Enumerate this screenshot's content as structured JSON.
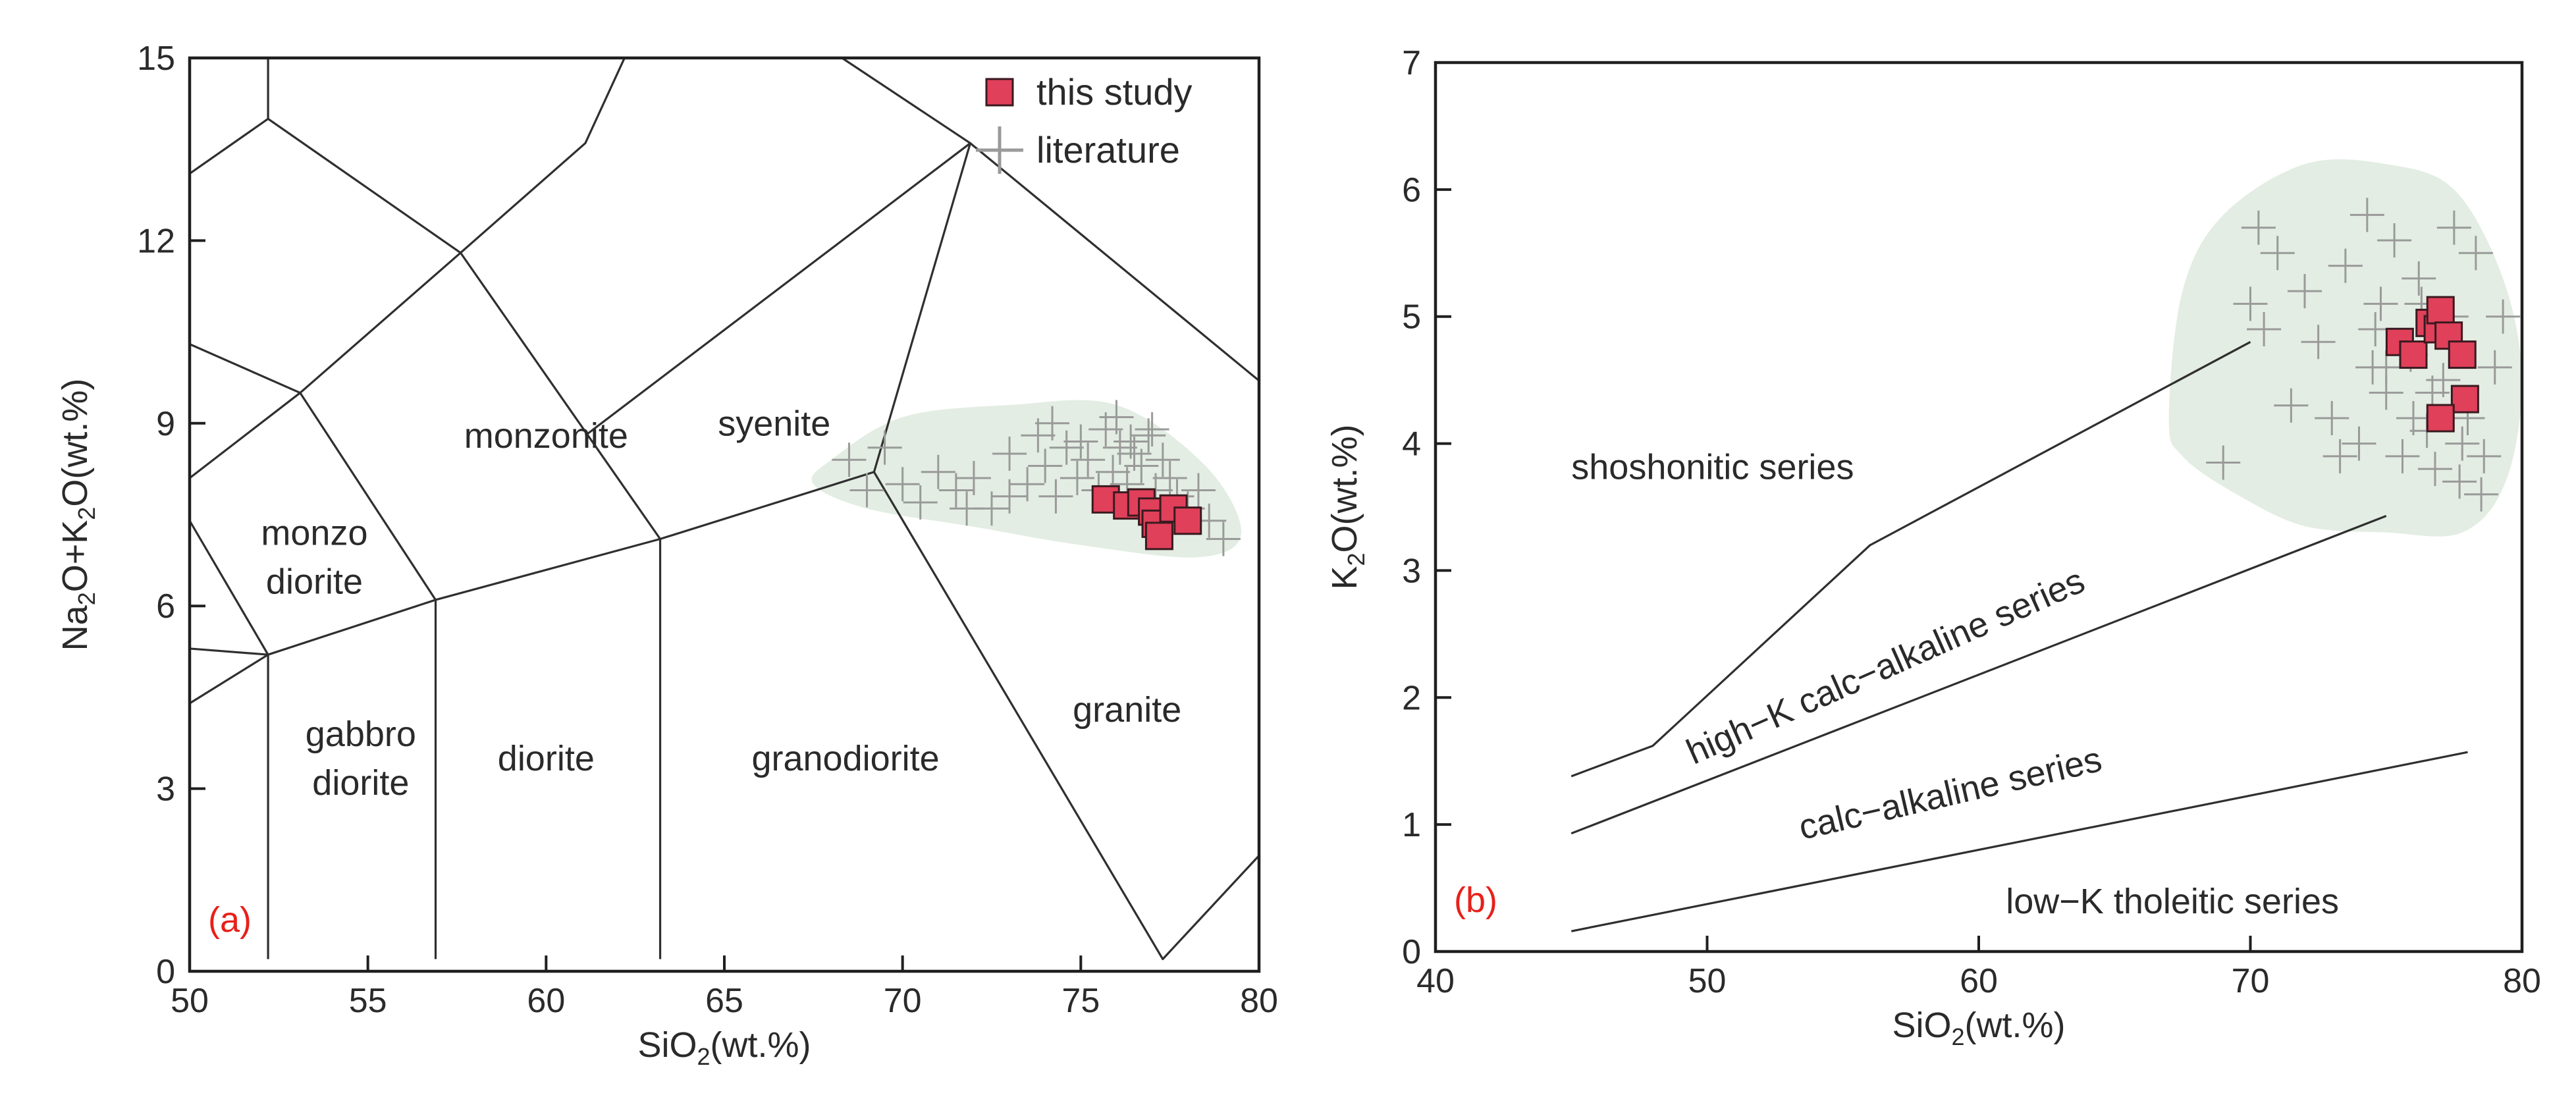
{
  "chart_data": [
    {
      "type": "scatter",
      "title": "",
      "panel_label": "(a)",
      "xlabel": "SiO",
      "xlabel_sub": "2",
      "xlabel_tail": "(wt.%)",
      "ylabel_parts": [
        "Na",
        "2",
        "O+K",
        "2",
        "O(wt.%)"
      ],
      "xlim": [
        50,
        80
      ],
      "ylim": [
        0,
        15
      ],
      "xticks": [
        50,
        55,
        60,
        65,
        70,
        75,
        80
      ],
      "yticks": [
        0,
        3,
        6,
        9,
        12,
        15
      ],
      "legend": {
        "position": "top-right",
        "entries": [
          {
            "label": "this study",
            "marker": "square",
            "color": "#e0405a"
          },
          {
            "label": "literature",
            "marker": "plus",
            "color": "#9a9a9a"
          }
        ]
      },
      "field_labels": [
        {
          "text": "monzonite",
          "x": 60.0,
          "y": 8.6
        },
        {
          "text": "syenite",
          "x": 66.4,
          "y": 8.8
        },
        {
          "text": "monzo",
          "x": 53.5,
          "y": 7.0
        },
        {
          "text": "diorite",
          "x": 53.5,
          "y": 6.2
        },
        {
          "text": "gabbro",
          "x": 54.8,
          "y": 3.7
        },
        {
          "text": "diorite",
          "x": 54.8,
          "y": 2.9
        },
        {
          "text": "diorite",
          "x": 60.0,
          "y": 3.3
        },
        {
          "text": "granodiorite",
          "x": 68.4,
          "y": 3.3
        },
        {
          "text": "granite",
          "x": 76.3,
          "y": 4.1
        }
      ],
      "boundaries": [
        [
          [
            50,
            4.4
          ],
          [
            52.2,
            5.2
          ],
          [
            56.9,
            6.1
          ],
          [
            63.2,
            7.1
          ],
          [
            69.2,
            8.2
          ],
          [
            71.9,
            13.6
          ],
          [
            80,
            9.7
          ]
        ],
        [
          [
            50,
            13.1
          ],
          [
            52.2,
            14.0
          ],
          [
            52.2,
            15.0
          ]
        ],
        [
          [
            52.2,
            14.0
          ],
          [
            57.6,
            11.8
          ],
          [
            61.1,
            13.6
          ],
          [
            62.2,
            15.0
          ]
        ],
        [
          [
            50,
            8.1
          ],
          [
            53.1,
            9.5
          ],
          [
            57.6,
            11.8
          ]
        ],
        [
          [
            50,
            10.3
          ],
          [
            53.1,
            9.5
          ],
          [
            56.9,
            6.1
          ]
        ],
        [
          [
            61.1,
            8.8
          ],
          [
            71.9,
            13.6
          ]
        ],
        [
          [
            57.6,
            11.8
          ],
          [
            63.2,
            7.1
          ]
        ],
        [
          [
            50,
            7.4
          ],
          [
            52.2,
            5.2
          ],
          [
            52.2,
            0.2
          ]
        ],
        [
          [
            50,
            5.3
          ],
          [
            52.2,
            5.2
          ]
        ],
        [
          [
            56.9,
            6.1
          ],
          [
            56.9,
            0.2
          ]
        ],
        [
          [
            63.2,
            7.1
          ],
          [
            63.2,
            0.2
          ]
        ],
        [
          [
            69.2,
            8.2
          ],
          [
            77.3,
            0.2
          ],
          [
            80,
            1.9
          ]
        ],
        [
          [
            68.3,
            15.0
          ],
          [
            71.9,
            13.6
          ]
        ]
      ],
      "shaded_region": {
        "color": "#e3ede3",
        "outline": [
          [
            68,
            8.4
          ],
          [
            70,
            9.1
          ],
          [
            73,
            9.3
          ],
          [
            76,
            9.3
          ],
          [
            78.5,
            8.3
          ],
          [
            79.5,
            7.2
          ],
          [
            78.3,
            6.8
          ],
          [
            75,
            7.0
          ],
          [
            72,
            7.3
          ],
          [
            69,
            7.6
          ],
          [
            67.5,
            8.0
          ]
        ]
      },
      "series": [
        {
          "name": "this study",
          "marker": "square",
          "color": "#e0405a",
          "x": [
            75.7,
            76.3,
            76.7,
            77.0,
            77.1,
            77.2,
            77.6,
            78.0
          ],
          "y": [
            7.75,
            7.65,
            7.7,
            7.55,
            7.35,
            7.15,
            7.6,
            7.4
          ]
        },
        {
          "name": "literature",
          "marker": "plus",
          "color": "#9a9a9a",
          "x": [
            68.5,
            69.0,
            69.5,
            70.0,
            70.5,
            71.0,
            71.5,
            72.0,
            72.5,
            73.0,
            73.5,
            73.8,
            74.0,
            74.3,
            74.6,
            74.9,
            75.2,
            75.5,
            75.7,
            75.9,
            76.1,
            76.3,
            76.5,
            76.7,
            76.9,
            77.1,
            77.3,
            77.5,
            77.7,
            78.0,
            78.3,
            78.6,
            79.0,
            74.2,
            75.0,
            76.0,
            77.0,
            73.0,
            71.8,
            76.4
          ],
          "y": [
            8.4,
            7.9,
            8.6,
            8.0,
            7.7,
            8.2,
            7.9,
            8.1,
            7.6,
            8.5,
            8.0,
            8.8,
            8.3,
            7.8,
            8.6,
            8.1,
            8.4,
            7.9,
            8.9,
            8.2,
            8.6,
            8.0,
            8.5,
            8.3,
            8.8,
            7.9,
            8.4,
            8.1,
            7.8,
            7.6,
            7.9,
            7.4,
            7.1,
            9.0,
            8.7,
            9.1,
            8.9,
            7.8,
            7.6,
            8.7
          ]
        }
      ]
    },
    {
      "type": "scatter",
      "title": "",
      "panel_label": "(b)",
      "xlabel": "SiO",
      "xlabel_sub": "2",
      "xlabel_tail": "(wt.%)",
      "ylabel_parts": [
        "K",
        "2",
        "O(wt.%)"
      ],
      "xlim": [
        40,
        80
      ],
      "ylim": [
        0,
        7
      ],
      "xticks": [
        40,
        50,
        60,
        70,
        80
      ],
      "yticks": [
        0,
        1,
        2,
        3,
        4,
        5,
        6,
        7
      ],
      "boundaries": [
        [
          [
            45,
            1.38
          ],
          [
            48,
            1.62
          ],
          [
            56,
            3.2
          ],
          [
            70,
            4.8
          ]
        ],
        [
          [
            45,
            0.93
          ],
          [
            75,
            3.43
          ]
        ],
        [
          [
            45,
            0.16
          ],
          [
            78,
            1.57
          ]
        ]
      ],
      "series_labels": [
        {
          "text": "shoshonitic  series",
          "x": 45,
          "y": 3.72,
          "angle": 0
        },
        {
          "text": "high−K  calc−alkaline series",
          "x": 49.5,
          "y": 1.47,
          "angle": 24
        },
        {
          "text": "calc−alkaline series",
          "x": 53.5,
          "y": 0.88,
          "angle": 13
        },
        {
          "text": "low−K  tholeitic  series",
          "x": 61,
          "y": 0.3,
          "angle": 0
        }
      ],
      "shaded_region": {
        "color": "#e3ede3",
        "outline": [
          [
            67,
            4.2
          ],
          [
            67.5,
            5.2
          ],
          [
            69,
            5.8
          ],
          [
            72,
            6.2
          ],
          [
            75,
            6.2
          ],
          [
            77.5,
            6.0
          ],
          [
            79.3,
            5.3
          ],
          [
            80,
            4.5
          ],
          [
            79.4,
            3.7
          ],
          [
            77.8,
            3.3
          ],
          [
            75,
            3.3
          ],
          [
            72,
            3.35
          ],
          [
            69.5,
            3.6
          ],
          [
            67.5,
            3.9
          ]
        ]
      },
      "series": [
        {
          "name": "this study",
          "marker": "square",
          "color": "#e0405a",
          "x": [
            75.5,
            76.0,
            76.6,
            76.9,
            77.0,
            77.3,
            77.8,
            77.9,
            77.0
          ],
          "y": [
            4.8,
            4.7,
            4.95,
            4.9,
            5.05,
            4.85,
            4.7,
            4.35,
            4.2
          ]
        },
        {
          "name": "literature",
          "marker": "plus",
          "color": "#9a9a9a",
          "x": [
            69.0,
            70.0,
            70.3,
            70.5,
            71.0,
            71.5,
            72.0,
            72.5,
            73.0,
            73.5,
            74.0,
            74.3,
            74.5,
            74.8,
            75.0,
            75.3,
            75.6,
            75.9,
            76.2,
            76.5,
            76.8,
            77.1,
            77.4,
            77.7,
            78.0,
            78.3,
            78.6,
            79.0,
            79.3,
            73.3,
            74.6,
            76.0,
            77.5,
            78.5,
            76.3,
            75.0,
            77.8,
            76.7
          ],
          "y": [
            3.85,
            5.1,
            5.7,
            4.9,
            5.5,
            4.3,
            5.2,
            4.8,
            4.2,
            5.4,
            4.0,
            5.8,
            4.6,
            5.1,
            4.4,
            5.6,
            3.9,
            4.7,
            5.3,
            4.1,
            3.8,
            4.5,
            5.0,
            3.7,
            4.2,
            5.5,
            3.9,
            4.6,
            5.0,
            3.9,
            4.9,
            4.2,
            5.7,
            3.6,
            5.1,
            4.6,
            4.0,
            4.4
          ]
        }
      ]
    }
  ]
}
